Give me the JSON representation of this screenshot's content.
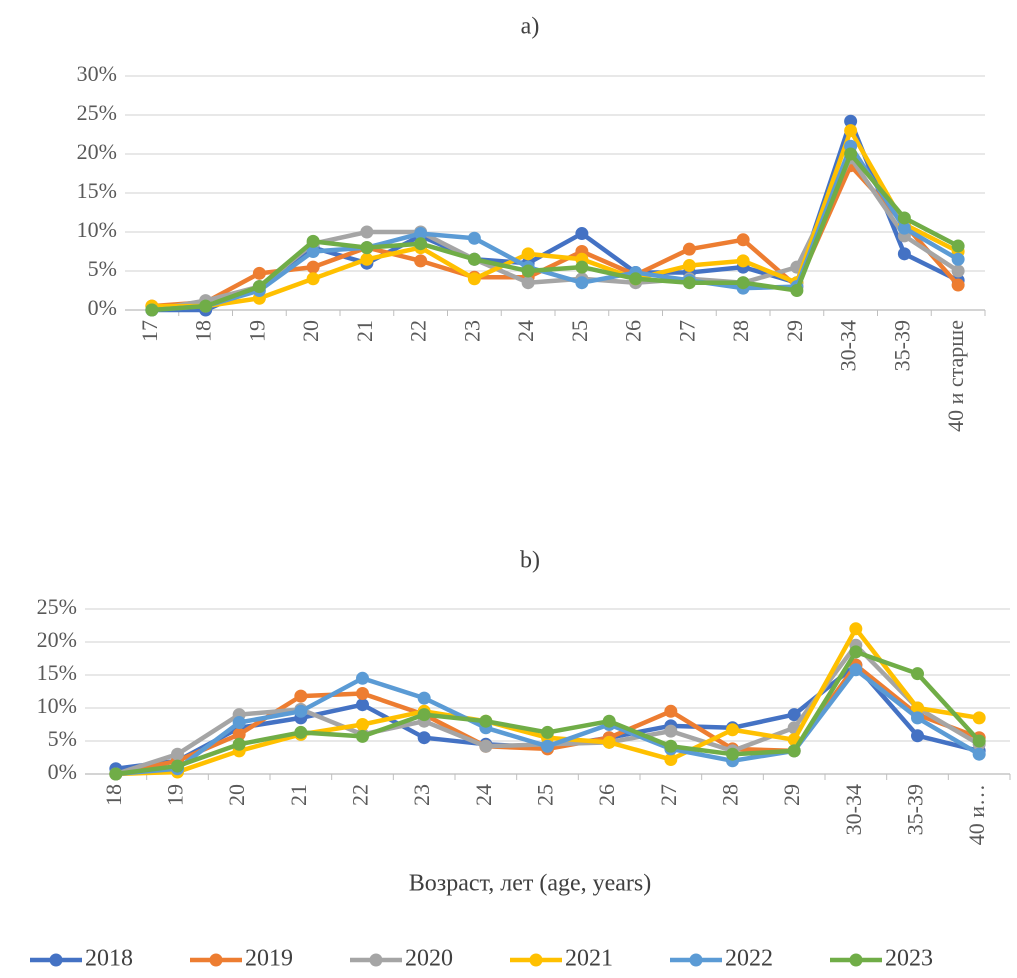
{
  "chart_data": [
    {
      "type": "line",
      "title": "a)",
      "categories": [
        "17",
        "18",
        "19",
        "20",
        "21",
        "22",
        "23",
        "24",
        "25",
        "26",
        "27",
        "28",
        "29",
        "30-34",
        "35-39",
        "40 и старше"
      ],
      "ylim": [
        0,
        30
      ],
      "yticks": [
        {
          "value": 0,
          "label": "0%"
        },
        {
          "value": 5,
          "label": "5%"
        },
        {
          "value": 10,
          "label": "10%"
        },
        {
          "value": 15,
          "label": "15%"
        },
        {
          "value": 20,
          "label": "20%"
        },
        {
          "value": 25,
          "label": "25%"
        },
        {
          "value": 30,
          "label": "30%"
        }
      ],
      "grid": true,
      "legend": "bottom",
      "series": [
        {
          "name": "2018",
          "color": "#4472c4",
          "values": [
            0,
            0,
            3,
            8,
            6,
            9.5,
            6.5,
            6,
            9.8,
            4.8,
            4.8,
            5.5,
            3.5,
            24.2,
            7.2,
            3.8
          ]
        },
        {
          "name": "2019",
          "color": "#ed7d31",
          "values": [
            0.5,
            1,
            4.7,
            5.5,
            8,
            6.3,
            4.2,
            4.2,
            7.5,
            4.5,
            7.8,
            9,
            3,
            18.5,
            11,
            3.2
          ]
        },
        {
          "name": "2020",
          "color": "#a5a5a5",
          "values": [
            0,
            1.2,
            3,
            8.5,
            10,
            10,
            6.5,
            3.5,
            4,
            3.5,
            4,
            3.5,
            5.5,
            19.5,
            9.5,
            5
          ]
        },
        {
          "name": "2021",
          "color": "#ffc000",
          "values": [
            0.5,
            0.5,
            1.5,
            4,
            6.5,
            8,
            4,
            7.2,
            6.5,
            4,
            5.7,
            6.3,
            3.5,
            23,
            11,
            7.5
          ]
        },
        {
          "name": "2022",
          "color": "#5b9bd5",
          "values": [
            0,
            0.5,
            2.5,
            7.5,
            8,
            9.8,
            9.2,
            5.5,
            3.5,
            4.8,
            3.8,
            2.8,
            3,
            21,
            10.5,
            6.5
          ]
        },
        {
          "name": "2023",
          "color": "#70ad47",
          "values": [
            0,
            0.5,
            3,
            8.8,
            8,
            8.5,
            6.5,
            5,
            5.5,
            4,
            3.5,
            3.5,
            2.5,
            20,
            11.8,
            8.2
          ]
        }
      ]
    },
    {
      "type": "line",
      "title": "b)",
      "x_label": "Возраст, лет (age, years)",
      "categories": [
        "18",
        "19",
        "20",
        "21",
        "22",
        "23",
        "24",
        "25",
        "26",
        "27",
        "28",
        "29",
        "30-34",
        "35-39",
        "40 и…"
      ],
      "ylim": [
        0,
        25
      ],
      "yticks": [
        {
          "value": 0,
          "label": "0%"
        },
        {
          "value": 5,
          "label": "5%"
        },
        {
          "value": 10,
          "label": "10%"
        },
        {
          "value": 15,
          "label": "15%"
        },
        {
          "value": 20,
          "label": "20%"
        },
        {
          "value": 25,
          "label": "25%"
        }
      ],
      "grid": true,
      "series": [
        {
          "color": "#4472c4",
          "values": [
            0.8,
            2,
            7,
            8.5,
            10.5,
            5.5,
            4.5,
            4,
            5.5,
            7.3,
            7,
            9,
            16.5,
            5.8,
            3.5
          ]
        },
        {
          "color": "#ed7d31",
          "values": [
            0,
            2,
            6,
            11.8,
            12.2,
            9,
            4.2,
            3.8,
            5.5,
            9.5,
            3.8,
            3.5,
            16.5,
            9,
            5.5
          ]
        },
        {
          "color": "#a5a5a5",
          "values": [
            0,
            3,
            9,
            9.8,
            6,
            8,
            4.2,
            4.5,
            4.8,
            6.5,
            3.5,
            7,
            19.5,
            10,
            4.5
          ]
        },
        {
          "color": "#ffc000",
          "values": [
            0,
            0.3,
            3.5,
            6,
            7.5,
            9.5,
            8,
            5.5,
            4.8,
            2.2,
            6.7,
            5.2,
            22,
            10,
            8.5
          ]
        },
        {
          "color": "#5b9bd5",
          "values": [
            0,
            0.8,
            7.8,
            9.5,
            14.5,
            11.5,
            7,
            4.2,
            7.5,
            3.8,
            2,
            3.5,
            15.8,
            8.5,
            3
          ]
        },
        {
          "color": "#70ad47",
          "values": [
            0,
            1.2,
            4.5,
            6.3,
            5.7,
            9,
            8,
            6.3,
            8,
            4.2,
            3,
            3.5,
            18.5,
            15.2,
            5
          ]
        }
      ]
    }
  ]
}
